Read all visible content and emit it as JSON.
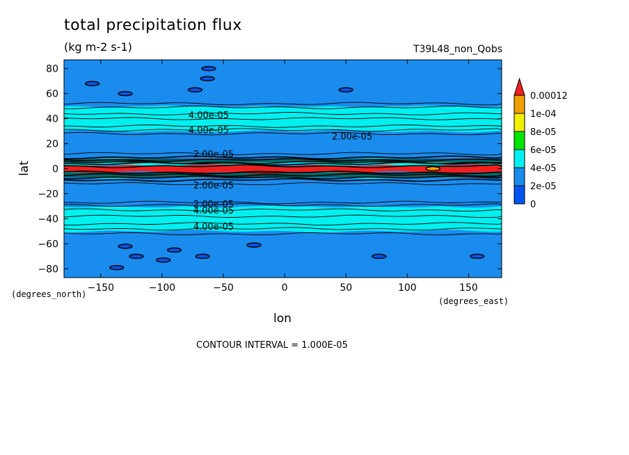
{
  "title": "total precipitation flux",
  "units": "(kg m-2 s-1)",
  "run_label": "T39L48_non_Qobs",
  "contour_interval": "CONTOUR INTERVAL = 1.000E-05",
  "colors": {
    "0": "#0055ee",
    "2e-05": "#1a8cee",
    "4e-05": "#00f0f0",
    "6e-05": "#00e600",
    "8e-05": "#f0f000",
    "1e-04": "#f0a000",
    "over": "#f02020"
  },
  "chart_data": {
    "type": "heatmap",
    "xlabel": "lon",
    "ylabel": "lat",
    "x_unit": "(degrees_east)",
    "y_unit": "(degrees_north)",
    "xlim": [
      -180,
      177
    ],
    "ylim": [
      -87,
      87
    ],
    "x_ticks": [
      -150,
      -100,
      -50,
      0,
      50,
      100,
      150
    ],
    "y_ticks": [
      80,
      60,
      40,
      20,
      0,
      -20,
      -40,
      -60,
      -80
    ],
    "colorbar_levels": [
      "0",
      "2e-05",
      "4e-05",
      "6e-05",
      "8e-05",
      "1e-04",
      "0.00012"
    ],
    "bands": [
      {
        "lat_min": -87,
        "lat_max": -50,
        "color": "#1a8cee"
      },
      {
        "lat_min": -50,
        "lat_max": -30,
        "color": "#00f0f0"
      },
      {
        "lat_min": -30,
        "lat_max": -7,
        "color": "#1a8cee"
      },
      {
        "lat_min": -7,
        "lat_max": -3,
        "color": "#00f0f0"
      },
      {
        "lat_min": -3,
        "lat_max": 3,
        "color": "#f02020"
      },
      {
        "lat_min": 3,
        "lat_max": 8,
        "color": "#00f0f0"
      },
      {
        "lat_min": 8,
        "lat_max": 30,
        "color": "#1a8cee"
      },
      {
        "lat_min": 30,
        "lat_max": 50,
        "color": "#00f0f0"
      },
      {
        "lat_min": 50,
        "lat_max": 87,
        "color": "#1a8cee"
      }
    ],
    "contour_lats": [
      -52,
      -48,
      -44,
      -38,
      -33,
      -29,
      -27,
      -12,
      -9,
      -7,
      -5,
      -3,
      2,
      4,
      5,
      7,
      9,
      12,
      28,
      31,
      34,
      40,
      44,
      49,
      52
    ],
    "contour_labels": [
      {
        "text": "4.00e-05",
        "lon": -62,
        "lat": 43
      },
      {
        "text": "4.00e-05",
        "lon": -62,
        "lat": 31
      },
      {
        "text": "2.00e-05",
        "lon": 55,
        "lat": 26
      },
      {
        "text": "2.00e-05",
        "lon": -58,
        "lat": 12
      },
      {
        "text": "2.00e-05",
        "lon": -58,
        "lat": -13
      },
      {
        "text": "2.00e-05",
        "lon": -58,
        "lat": -28
      },
      {
        "text": "4.00e-05",
        "lon": -58,
        "lat": -33
      },
      {
        "text": "4.00e-05",
        "lon": -58,
        "lat": -46
      }
    ],
    "blobs": [
      {
        "lon": -62,
        "lat": 80,
        "color": "#0055ee"
      },
      {
        "lon": -130,
        "lat": 60,
        "color": "#0055ee"
      },
      {
        "lon": -73,
        "lat": 63,
        "color": "#0055ee"
      },
      {
        "lon": -63,
        "lat": 72,
        "color": "#0055ee"
      },
      {
        "lon": -157,
        "lat": 68,
        "color": "#0055ee"
      },
      {
        "lon": 50,
        "lat": 63,
        "color": "#0055ee"
      },
      {
        "lon": -137,
        "lat": -79,
        "color": "#0055ee"
      },
      {
        "lon": -130,
        "lat": -62,
        "color": "#0055ee"
      },
      {
        "lon": -121,
        "lat": -70,
        "color": "#0055ee"
      },
      {
        "lon": -90,
        "lat": -65,
        "color": "#0055ee"
      },
      {
        "lon": -99,
        "lat": -73,
        "color": "#0055ee"
      },
      {
        "lon": -67,
        "lat": -70,
        "color": "#0055ee"
      },
      {
        "lon": -25,
        "lat": -61,
        "color": "#0055ee"
      },
      {
        "lon": 77,
        "lat": -70,
        "color": "#0055ee"
      },
      {
        "lon": 157,
        "lat": -70,
        "color": "#0055ee"
      },
      {
        "lon": 121,
        "lat": 0,
        "color": "#f0a000"
      }
    ]
  }
}
